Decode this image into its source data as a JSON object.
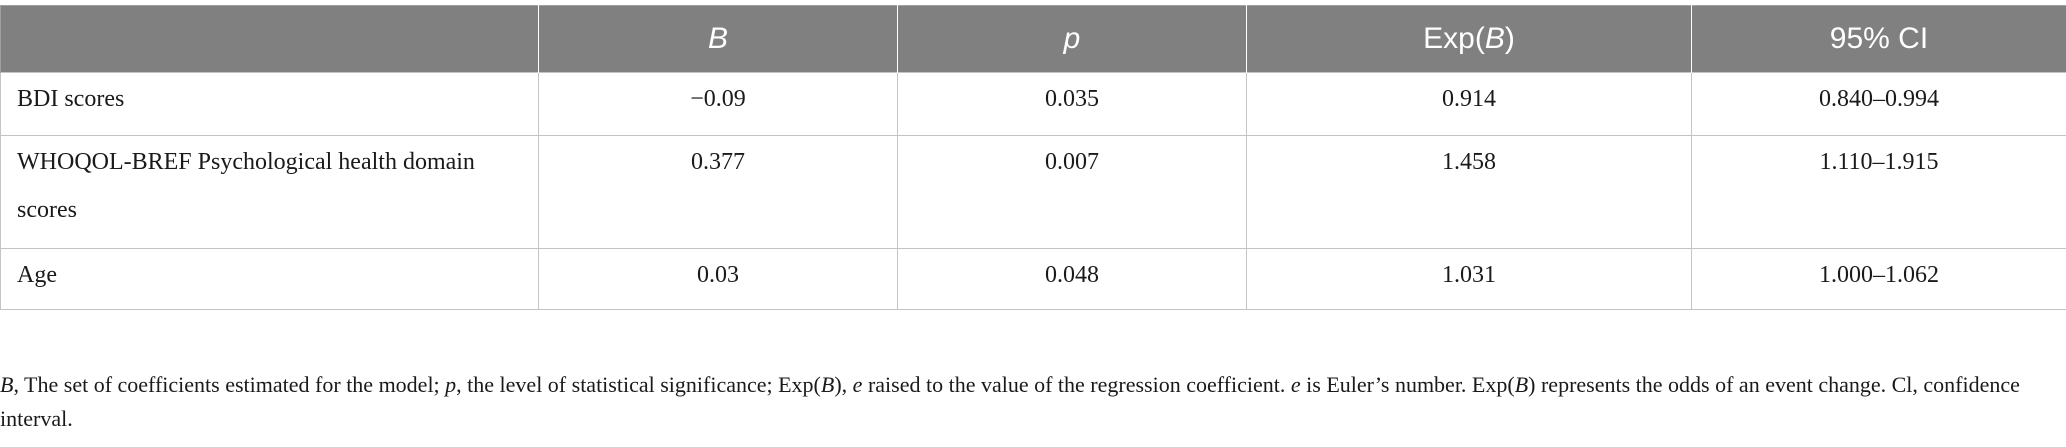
{
  "table": {
    "headers": [
      {
        "text": "",
        "italic": false
      },
      {
        "text": "B",
        "italic": true
      },
      {
        "text": "p",
        "italic": true
      },
      {
        "pre": "Exp(",
        "it": "B",
        "post": ")"
      },
      {
        "text": "95% CI",
        "italic": false
      }
    ],
    "rows": [
      {
        "label": "BDI scores",
        "B": "−0.09",
        "p": "0.035",
        "expB": "0.914",
        "ci": "0.840–0.994"
      },
      {
        "label": "WHOQOL-BREF Psychological health domain scores",
        "B": "0.377",
        "p": "0.007",
        "expB": "1.458",
        "ci": "1.110–1.915"
      },
      {
        "label": "Age",
        "B": "0.03",
        "p": "0.048",
        "expB": "1.031",
        "ci": "1.000–1.062"
      }
    ]
  },
  "footnote": {
    "s1_it": "B",
    "s1": ", The set of coefficients estimated for the model; ",
    "s2_it": "p",
    "s2": ", the level of statistical significance; Exp(",
    "s3_it": "B",
    "s3": "), ",
    "s4_it": "e",
    "s4": " raised to the value of the regression coefficient. ",
    "s5_it": "e",
    "s5": " is Euler’s number. Exp(",
    "s6_it": "B",
    "s6": ") represents the odds of an event change. Cl, confidence interval."
  }
}
